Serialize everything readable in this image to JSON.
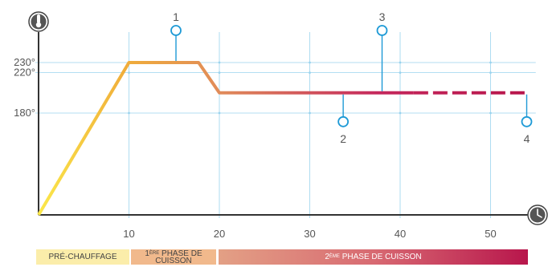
{
  "chart_data": {
    "type": "line",
    "x_ticks": [
      10,
      20,
      30,
      40,
      50
    ],
    "y_ticks": [
      "230°",
      "220°",
      "180°"
    ],
    "y_tick_values": [
      230,
      220,
      180
    ],
    "xlim": [
      0,
      55
    ],
    "ylim": [
      0,
      260
    ],
    "grid": true,
    "series": [
      {
        "points": [
          [
            0,
            0
          ],
          [
            10,
            230
          ],
          [
            17.7,
            230
          ],
          [
            20,
            200
          ],
          [
            41.5,
            200
          ]
        ],
        "style": "solid"
      },
      {
        "points": [
          [
            41.5,
            200
          ],
          [
            54,
            200
          ]
        ],
        "style": "dashed"
      }
    ],
    "gradient_colors": [
      "#fbe84a",
      "#f0ad3a",
      "#e08a5a",
      "#c5285c",
      "#b8164c"
    ],
    "callouts": [
      {
        "label": "1",
        "x": 15.2,
        "y": 230,
        "position": "above"
      },
      {
        "label": "2",
        "x": 33.7,
        "y": 200,
        "position": "below"
      },
      {
        "label": "3",
        "x": 38.0,
        "y": 200,
        "position": "above"
      },
      {
        "label": "4",
        "x": 54,
        "y": 200,
        "position": "below"
      }
    ],
    "y_axis_icon": "thermometer-icon",
    "x_axis_icon": "clock-icon",
    "phases": {
      "pre": "PRÉ-CHAUFFAGE",
      "p1_sup": "1",
      "p1_exp": "ÈRE",
      "p1_line1": " PHASE DE",
      "p1_line2": "CUISSON",
      "p2_sup": "2",
      "p2_exp": "ÈME",
      "p2_text": " PHASE DE CUISSON"
    },
    "axis_color": "#333333",
    "grid_color": "#9ad3ee",
    "callout_color": "#1e9ad6"
  }
}
